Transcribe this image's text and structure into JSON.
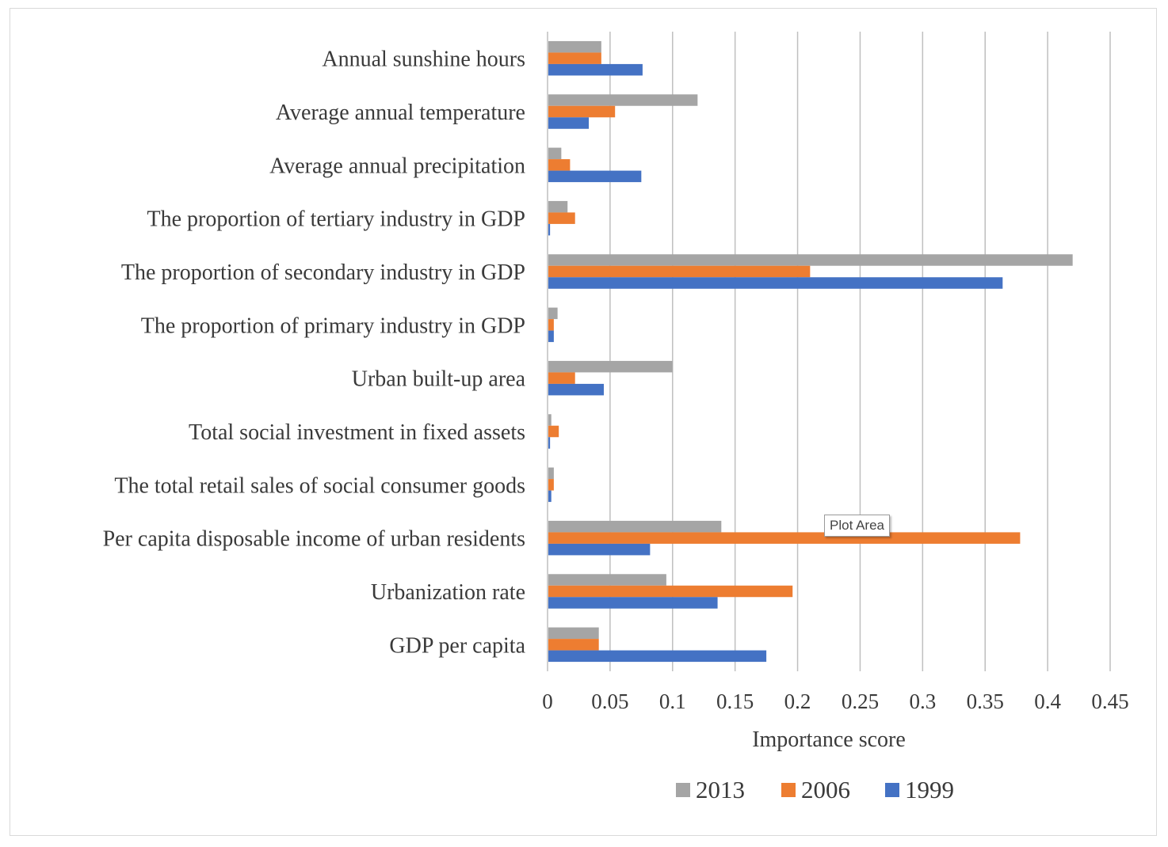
{
  "chart_data": {
    "type": "bar",
    "orientation": "horizontal",
    "categories": [
      "Annual sunshine hours",
      "Average annual temperature",
      "Average annual precipitation",
      "The proportion of tertiary industry in GDP",
      "The proportion of secondary industry in GDP",
      "The proportion of primary industry in GDP",
      "Urban built-up area",
      "Total social investment in fixed assets",
      "The total retail sales of social consumer goods",
      "Per capita disposable income of urban residents",
      "Urbanization rate",
      "GDP per capita"
    ],
    "series": [
      {
        "name": "2013",
        "color": "#a5a5a5",
        "values": [
          0.043,
          0.12,
          0.011,
          0.016,
          0.42,
          0.008,
          0.1,
          0.003,
          0.005,
          0.139,
          0.095,
          0.041
        ]
      },
      {
        "name": "2006",
        "color": "#ed7d31",
        "values": [
          0.043,
          0.054,
          0.018,
          0.022,
          0.21,
          0.005,
          0.022,
          0.009,
          0.005,
          0.378,
          0.196,
          0.041
        ]
      },
      {
        "name": "1999",
        "color": "#4472c4",
        "values": [
          0.076,
          0.033,
          0.075,
          0.002,
          0.364,
          0.005,
          0.045,
          0.002,
          0.003,
          0.082,
          0.136,
          0.175
        ]
      }
    ],
    "xlabel": "Importance score",
    "ylabel": "",
    "xlim": [
      0,
      0.45
    ],
    "xticks": [
      "0",
      "0.05",
      "0.1",
      "0.15",
      "0.2",
      "0.25",
      "0.3",
      "0.35",
      "0.4",
      "0.45"
    ],
    "grid": true,
    "legend": {
      "position": "bottom",
      "entries": [
        "2013",
        "2006",
        "1999"
      ]
    }
  },
  "tooltip": {
    "text": "Plot Area"
  }
}
